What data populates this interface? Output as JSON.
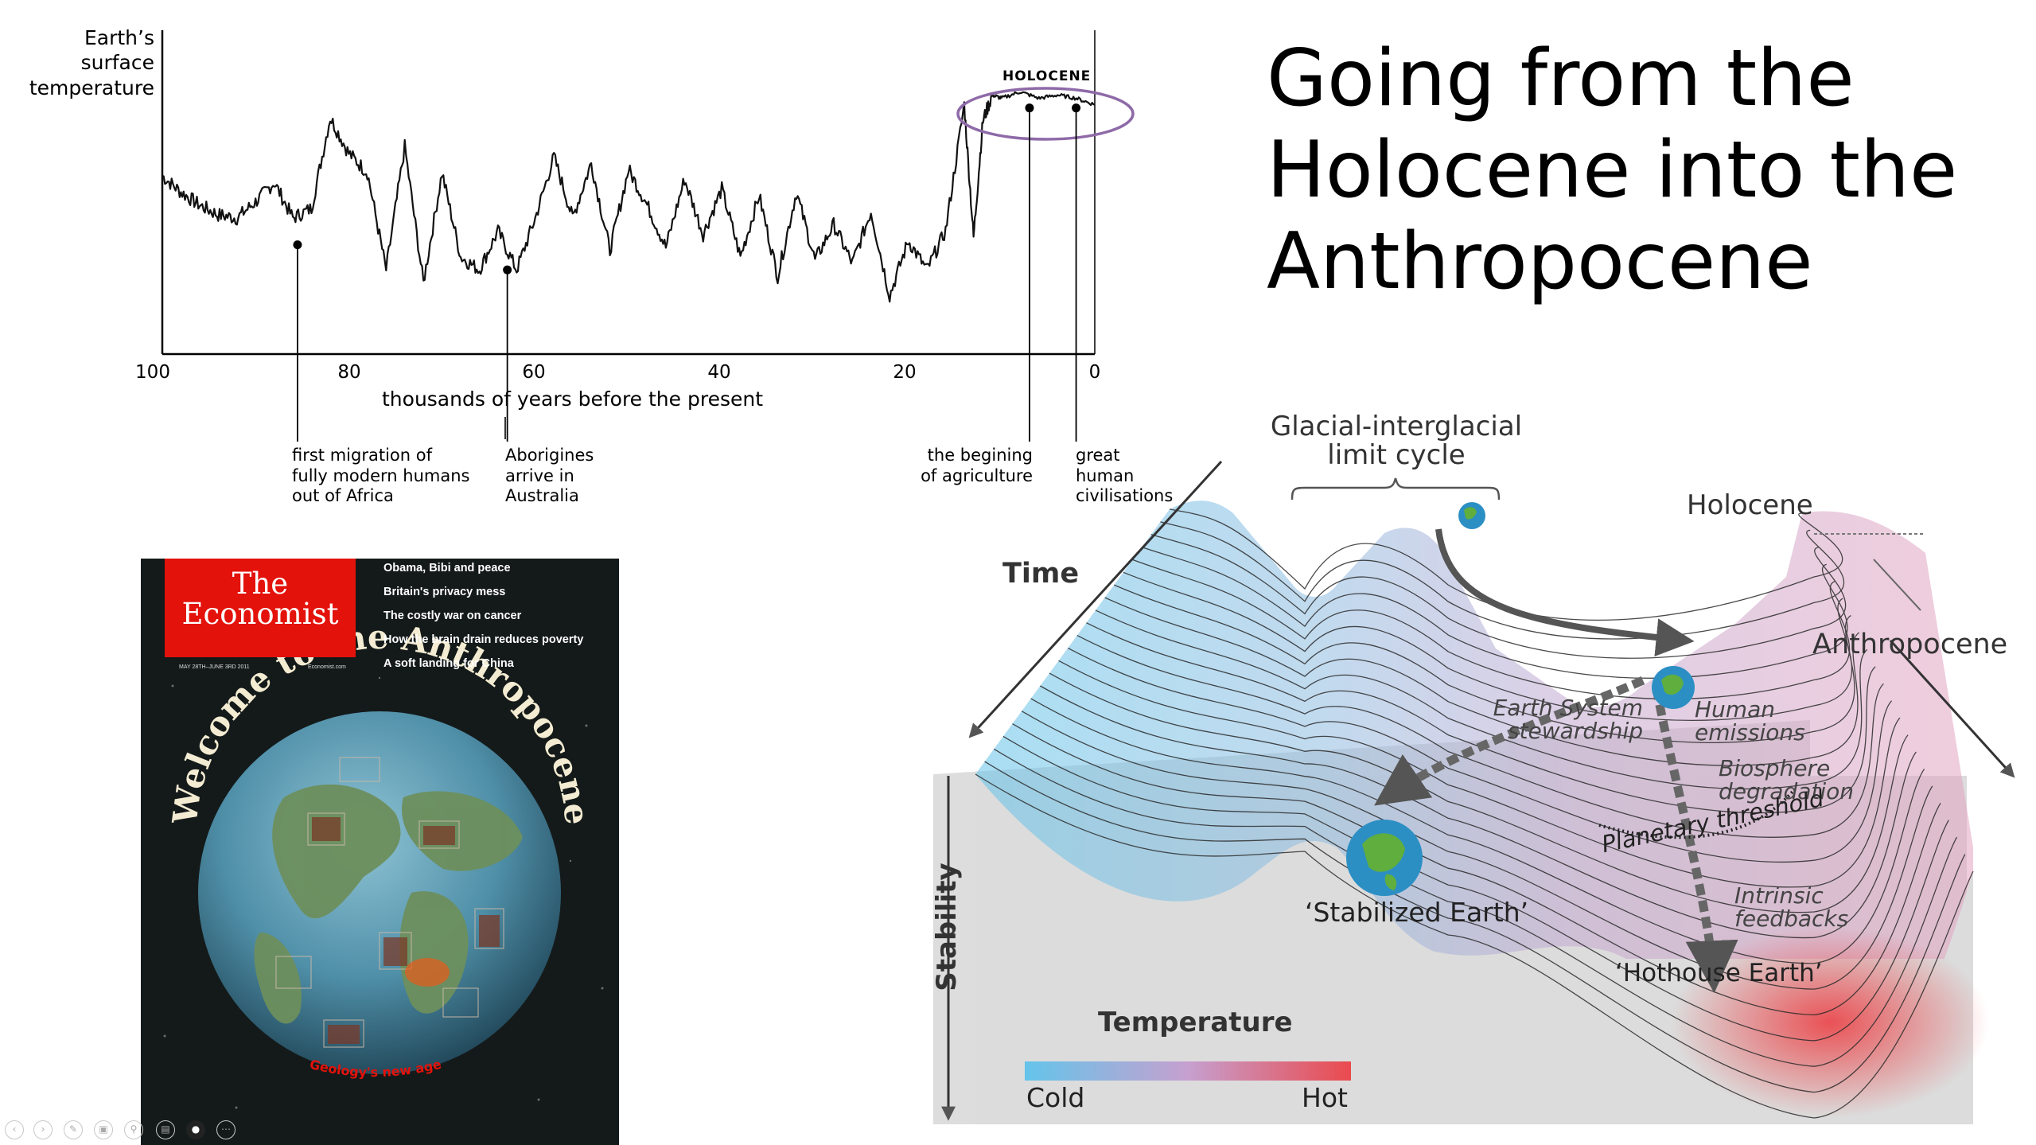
{
  "slide": {
    "title_lines": [
      "Going from the",
      "Holocene into the",
      "Anthropocene"
    ]
  },
  "temperature_chart": {
    "ylabel_lines": [
      "Earth’s",
      "surface",
      "temperature"
    ],
    "holocene_label": "HOLOCENE",
    "xlabel": "thousands of years before the present",
    "x_ticks": [
      "100",
      "80",
      "60",
      "40",
      "20",
      "0"
    ],
    "annotations": [
      {
        "lines": [
          "first migration of",
          "fully modern humans",
          "out of Africa"
        ]
      },
      {
        "lines": [
          "Aborigines",
          "arrive in",
          "Australia"
        ]
      },
      {
        "lines": [
          "the begining",
          "of agriculture"
        ]
      },
      {
        "lines": [
          "great",
          "human",
          "civilisations"
        ]
      }
    ]
  },
  "chart_data": {
    "type": "line",
    "title": "",
    "xlabel": "thousands of years before the present",
    "ylabel": "Earth’s surface temperature",
    "x_reversed": true,
    "xlim": [
      100,
      0
    ],
    "ylim": [
      0,
      10
    ],
    "grid": false,
    "x": [
      100,
      98,
      96,
      94,
      92,
      90,
      88,
      86,
      84,
      82,
      80,
      78,
      76,
      74,
      72,
      70,
      68,
      66,
      64,
      62,
      60,
      58,
      56,
      54,
      52,
      50,
      48,
      46,
      44,
      42,
      40,
      38,
      36,
      34,
      32,
      30,
      28,
      26,
      24,
      22,
      20,
      18,
      16,
      14,
      13,
      12,
      11,
      10,
      8,
      6,
      4,
      2,
      0
    ],
    "y": [
      5.5,
      5.0,
      4.6,
      4.3,
      4.2,
      4.7,
      5.3,
      4.2,
      4.5,
      7.3,
      6.2,
      5.6,
      2.6,
      6.4,
      2.2,
      5.6,
      3.0,
      2.6,
      3.8,
      2.6,
      4.2,
      6.1,
      4.2,
      5.9,
      3.2,
      5.7,
      4.6,
      3.3,
      5.4,
      3.7,
      5.1,
      3.0,
      4.9,
      2.4,
      5.0,
      2.9,
      4.0,
      2.8,
      4.4,
      1.8,
      3.5,
      2.6,
      3.8,
      7.7,
      3.6,
      7.2,
      8.0,
      7.9,
      8.1,
      7.9,
      8.0,
      7.9,
      7.7
    ],
    "annotations": [
      {
        "x": 85.5,
        "text": "first migration of fully modern humans out of Africa"
      },
      {
        "x": 63,
        "text": "Aborigines arrive in Australia"
      },
      {
        "x": 7,
        "text": "the begining of agriculture"
      },
      {
        "x": 2,
        "text": "great human civilisations"
      }
    ],
    "highlight": {
      "label": "HOLOCENE",
      "x_range": [
        15,
        0
      ]
    }
  },
  "economist_cover": {
    "masthead_line1": "The",
    "masthead_line2": "Economist",
    "headlines": [
      "Obama, Bibi and peace",
      "Britain's privacy mess",
      "The costly war on cancer",
      "How the brain drain reduces poverty",
      "A soft landing for China"
    ],
    "dateline": "MAY 28TH–JUNE 3RD 2011",
    "website": "Economist.com",
    "cover_title": "Welcome to the Anthropocene",
    "cover_subtitle": "Geology's new age",
    "brand_red": "#e3120b"
  },
  "landscape_diagram": {
    "glacial_label_line1": "Glacial-interglacial",
    "glacial_label_line2": "limit cycle",
    "holocene_label": "Holocene",
    "anthropocene_label": "Anthropocene",
    "time_label": "Time",
    "stability_label": "Stability",
    "earth_system_line1": "Earth System",
    "earth_system_line2": "stewardship",
    "human_emissions_line1": "Human",
    "human_emissions_line2": "emissions",
    "biosphere_line1": "Biosphere",
    "biosphere_line2": "degradation",
    "planetary_threshold": "Planetary threshold",
    "intrinsic_line1": "Intrinsic",
    "intrinsic_line2": "feedbacks",
    "stabilized_earth": "‘Stabilized Earth’",
    "hothouse_earth": "‘Hothouse Earth’",
    "legend_title": "Temperature",
    "legend_cold": "Cold",
    "legend_hot": "Hot",
    "cold_color": "#64c4ea",
    "hot_color": "#ea4a4e"
  },
  "slideshow_controls": {
    "icons": [
      "previous-icon",
      "next-icon",
      "pen-icon",
      "slides-icon",
      "zoom-icon",
      "subtitles-icon",
      "camera-icon",
      "more-icon"
    ],
    "more_label": "⋯"
  }
}
